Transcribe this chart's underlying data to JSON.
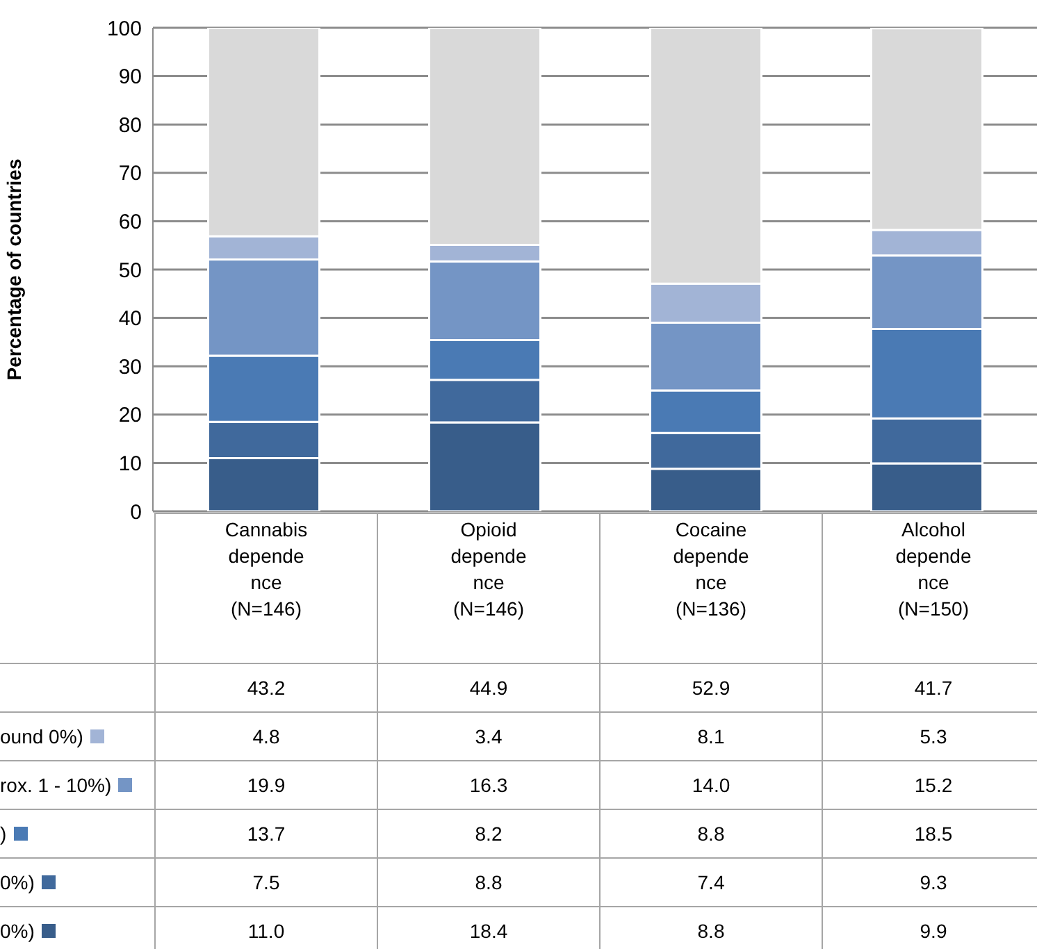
{
  "chart_data": {
    "type": "bar",
    "stacked": true,
    "ylabel": "Percentage of countries",
    "categories": [
      "Cannabis dependence (N=146)",
      "Opioid dependence (N=146)",
      "Cocaine dependence (N=136)",
      "Alcohol dependence (N=150)"
    ],
    "series": [
      {
        "name": "0%)",
        "color": "#385d8a",
        "values": [
          11.0,
          18.4,
          8.8,
          9.9
        ],
        "value_labels": [
          "11.0",
          "18.4",
          "8.8",
          "9.9"
        ]
      },
      {
        "name": "0%)",
        "color": "#40699c",
        "values": [
          7.5,
          8.8,
          7.4,
          9.3
        ],
        "value_labels": [
          "7.5",
          "8.8",
          "7.4",
          "9.3"
        ]
      },
      {
        "name": ")",
        "color": "#4a7ab4",
        "values": [
          13.7,
          8.2,
          8.8,
          18.5
        ],
        "value_labels": [
          "13.7",
          "8.2",
          "8.8",
          "18.5"
        ]
      },
      {
        "name": "rox. 1 - 10%)",
        "color": "#7495c5",
        "values": [
          19.9,
          16.3,
          14.0,
          15.2
        ],
        "value_labels": [
          "19.9",
          "16.3",
          "14.0",
          "15.2"
        ]
      },
      {
        "name": "ound 0%)",
        "color": "#a2b4d6",
        "values": [
          4.8,
          3.4,
          8.1,
          5.3
        ],
        "value_labels": [
          "4.8",
          "3.4",
          "8.1",
          "5.3"
        ]
      },
      {
        "color": "#d9d9d9",
        "values": [
          43.2,
          44.9,
          52.9,
          41.7
        ],
        "value_labels": [
          "43.2",
          "44.9",
          "52.9",
          "41.7"
        ]
      }
    ],
    "ylim": [
      0,
      100
    ],
    "yticks": [
      0,
      10,
      20,
      30,
      40,
      50,
      60,
      70,
      80,
      90,
      100
    ],
    "grid": "y",
    "legend": "left"
  }
}
